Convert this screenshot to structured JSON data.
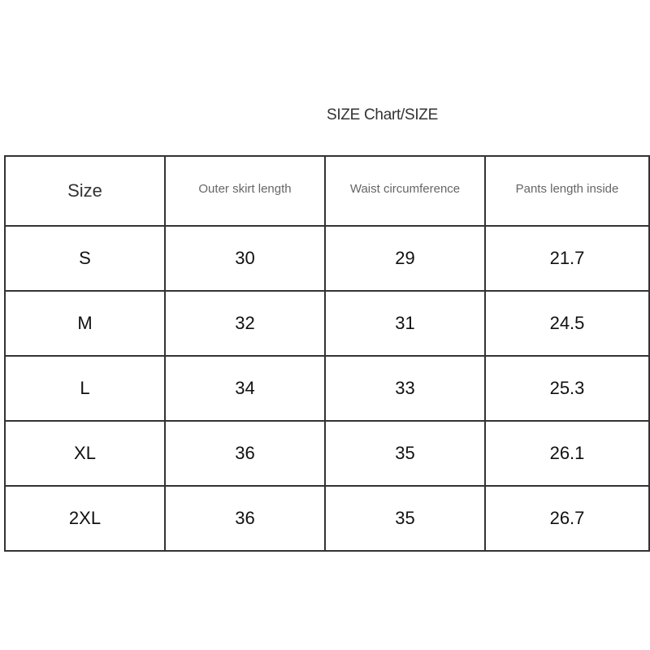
{
  "title": "SIZE Chart/SIZE",
  "table": {
    "headers": [
      "Size",
      "Outer skirt length",
      "Waist circumference",
      "Pants length inside"
    ],
    "rows": [
      [
        "S",
        "30",
        "29",
        "21.7"
      ],
      [
        "M",
        "32",
        "31",
        "24.5"
      ],
      [
        "L",
        "34",
        "33",
        "25.3"
      ],
      [
        "XL",
        "36",
        "35",
        "26.1"
      ],
      [
        "2XL",
        "36",
        "35",
        "26.7"
      ]
    ]
  }
}
